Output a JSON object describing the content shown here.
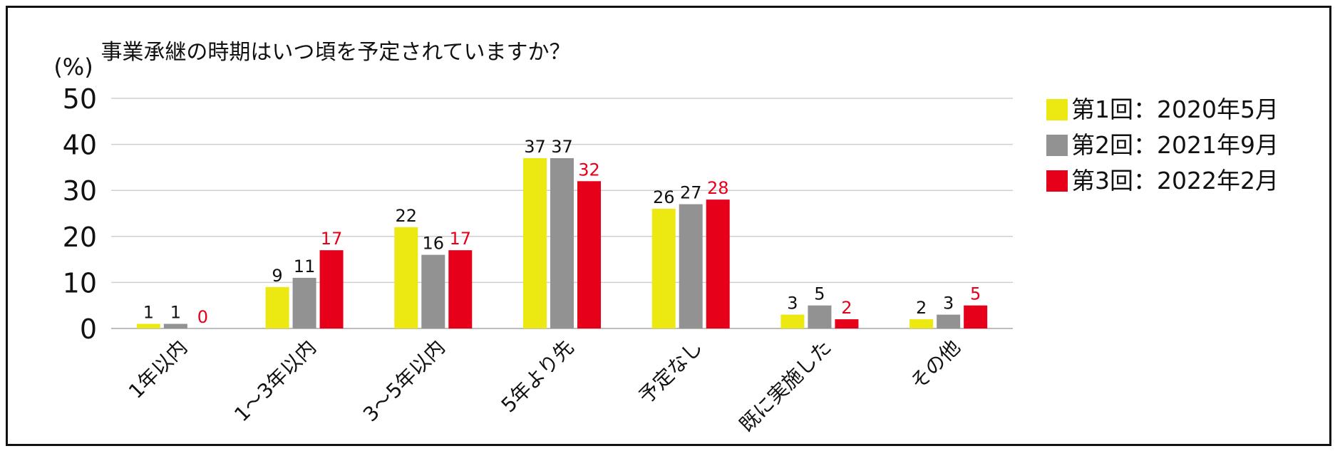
{
  "chart_data": {
    "type": "bar",
    "title": "事業承継の時期はいつ頃を予定されていますか？",
    "ylabel": "(%)",
    "xlabel": "",
    "ylim": [
      0,
      50
    ],
    "yticks": [
      0,
      10,
      20,
      30,
      40,
      50
    ],
    "grid": true,
    "legend_position": "right",
    "categories": [
      "1年以内",
      "1～3年以内",
      "3～5年以内",
      "5年より先",
      "予定なし",
      "既に実施した",
      "その他"
    ],
    "series": [
      {
        "name": "第1回：2020年5月",
        "color": "#ece812",
        "label_color": "#111111",
        "values": [
          1,
          9,
          22,
          37,
          26,
          3,
          2
        ]
      },
      {
        "name": "第2回：2021年9月",
        "color": "#929292",
        "label_color": "#111111",
        "values": [
          1,
          11,
          16,
          37,
          27,
          5,
          3
        ]
      },
      {
        "name": "第3回：2022年2月",
        "color": "#e6001a",
        "label_color": "#e6001a",
        "values": [
          0,
          17,
          17,
          32,
          28,
          2,
          5
        ]
      }
    ]
  }
}
